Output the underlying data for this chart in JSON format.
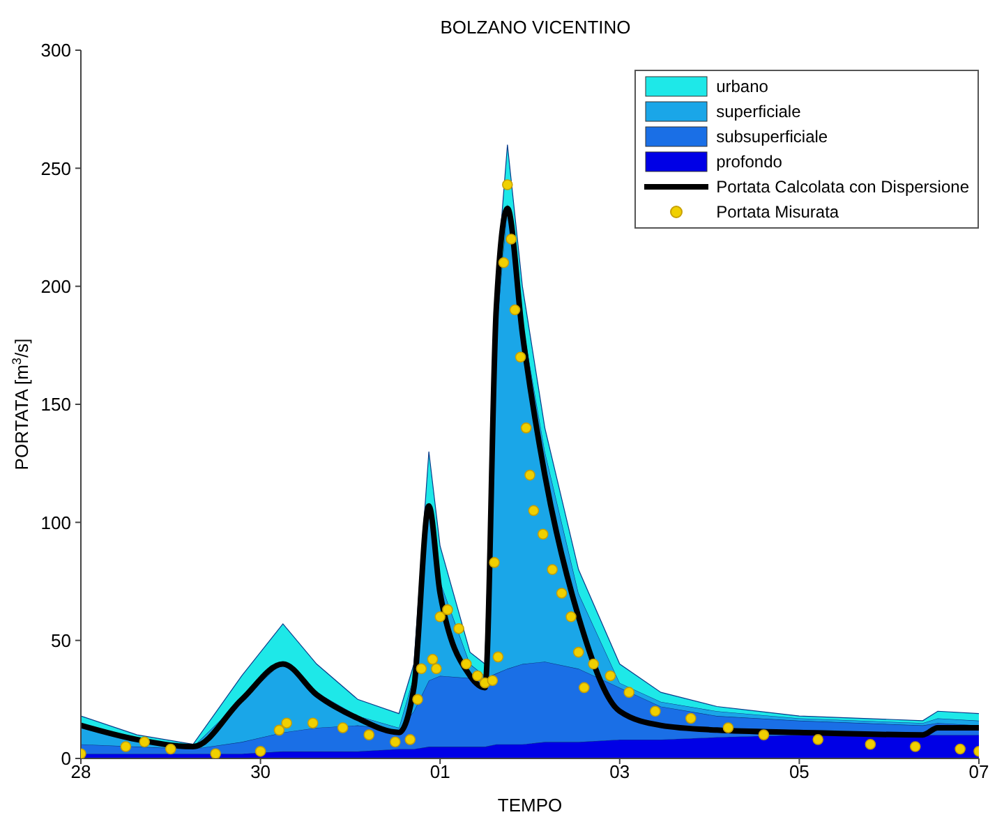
{
  "chart_data": {
    "type": "area",
    "title": "BOLZANO VICENTINO",
    "xlabel": "TEMPO",
    "ylabel": "PORTATA [m$^{3}$/s]",
    "stacked": true,
    "x": [
      "--10-28T00:00",
      "--10-28T15:00",
      "--10-29T06:00",
      "--10-29T19:00",
      "--10-30T06:00",
      "--10-30T15:00",
      "--10-31T02:00",
      "--10-31T13:00",
      "--10-31T17:00",
      "--10-31T21:00",
      "--11-01T00:00",
      "--11-01T08:00",
      "--11-01T12:00",
      "--11-01T15:00",
      "--11-01T18:00",
      "--11-01T22:00",
      "--11-02T04:00",
      "--11-02T13:00",
      "--11-03T00:00",
      "--11-03T11:00",
      "--11-04T02:00",
      "--11-05T00:00",
      "--11-06T09:00",
      "--11-06T13:00",
      "--11-07T00:00"
    ],
    "xlim": [
      "--10-28",
      "--11-07"
    ],
    "xticks": [
      {
        "value": "--10-28",
        "label": "28"
      },
      {
        "value": "--10-30",
        "label": "30"
      },
      {
        "value": "--11-01",
        "label": "01"
      },
      {
        "value": "--11-03",
        "label": "03"
      },
      {
        "value": "--11-05",
        "label": "05"
      },
      {
        "value": "--11-07",
        "label": "07"
      }
    ],
    "ylim": [
      0,
      300
    ],
    "yticks": [
      0,
      50,
      100,
      150,
      200,
      250,
      300
    ],
    "legend": "top right",
    "series": [
      {
        "name": "profondo",
        "color": "#0000e6",
        "values": [
          2,
          2,
          2,
          2,
          3,
          3,
          3,
          4,
          4,
          5,
          5,
          5,
          5,
          6,
          6,
          6,
          7,
          7,
          8,
          8,
          9,
          10,
          10,
          10,
          10
        ]
      },
      {
        "name": "subsuperficiale",
        "color": "#1a6fe6",
        "values": [
          4,
          3,
          2,
          5,
          8,
          10,
          11,
          8,
          16,
          28,
          30,
          29,
          29,
          30,
          32,
          34,
          34,
          31,
          22,
          14,
          9,
          6,
          4,
          5,
          4
        ]
      },
      {
        "name": "superficiale",
        "color": "#1aa6e8",
        "values": [
          9,
          3,
          1,
          18,
          30,
          15,
          4,
          1,
          15,
          74,
          40,
          6,
          1,
          144,
          197,
          145,
          89,
          32,
          2,
          2,
          2,
          1,
          1,
          2,
          2
        ]
      },
      {
        "name": "urbano",
        "color": "#1ee8e8",
        "values": [
          3,
          2,
          1,
          10,
          16,
          12,
          7,
          6,
          5,
          23,
          15,
          5,
          5,
          20,
          25,
          15,
          10,
          10,
          8,
          4,
          2,
          1,
          1,
          3,
          3
        ]
      },
      {
        "name": "Portata Calcolata con Dispersione",
        "type": "line",
        "color": "#000000",
        "marker": "none",
        "line_style": "solid",
        "values": [
          14,
          8,
          5,
          25,
          40,
          27,
          17,
          11,
          30,
          107,
          70,
          35,
          30,
          190,
          233,
          180,
          120,
          60,
          20,
          14,
          12,
          11,
          10,
          13,
          13
        ]
      },
      {
        "name": "Portata Misurata",
        "type": "scatter",
        "color": "#f0d000",
        "marker": "circle",
        "x": [
          "--10-28T00:00",
          "--10-28T12:00",
          "--10-28T17:00",
          "--10-29T00:00",
          "--10-29T12:00",
          "--10-30T00:00",
          "--10-30T05:00",
          "--10-30T07:00",
          "--10-30T14:00",
          "--10-30T22:00",
          "--10-31T05:00",
          "--10-31T12:00",
          "--10-31T16:00",
          "--10-31T18:00",
          "--10-31T19:00",
          "--10-31T22:00",
          "--10-31T23:00",
          "--11-01T00:00",
          "--11-01T02:00",
          "--11-01T05:00",
          "--11-01T07:00",
          "--11-01T10:00",
          "--11-01T12:00",
          "--11-01T14:00",
          "--11-01T14:30",
          "--11-01T15:30",
          "--11-01T17:00",
          "--11-01T18:00",
          "--11-01T19:00",
          "--11-01T20:00",
          "--11-01T21:30",
          "--11-01T23:00",
          "--11-02T00:00",
          "--11-02T01:00",
          "--11-02T03:30",
          "--11-02T06:00",
          "--11-02T08:30",
          "--11-02T11:00",
          "--11-02T13:00",
          "--11-02T14:30",
          "--11-02T17:00",
          "--11-02T21:30",
          "--11-03T02:30",
          "--11-03T09:30",
          "--11-03T19:00",
          "--11-04T05:00",
          "--11-04T14:30",
          "--11-05T05:00",
          "--11-05T19:00",
          "--11-06T07:00",
          "--11-06T19:00",
          "--11-07T00:00"
        ],
        "values": [
          2,
          5,
          7,
          4,
          2,
          3,
          12,
          15,
          15,
          13,
          10,
          7,
          8,
          25,
          38,
          42,
          38,
          60,
          63,
          55,
          40,
          35,
          32,
          33,
          83,
          43,
          210,
          243,
          220,
          190,
          170,
          140,
          120,
          105,
          95,
          80,
          70,
          60,
          45,
          30,
          40,
          35,
          28,
          20,
          17,
          13,
          10,
          8,
          6,
          5,
          4,
          3
        ]
      }
    ]
  }
}
